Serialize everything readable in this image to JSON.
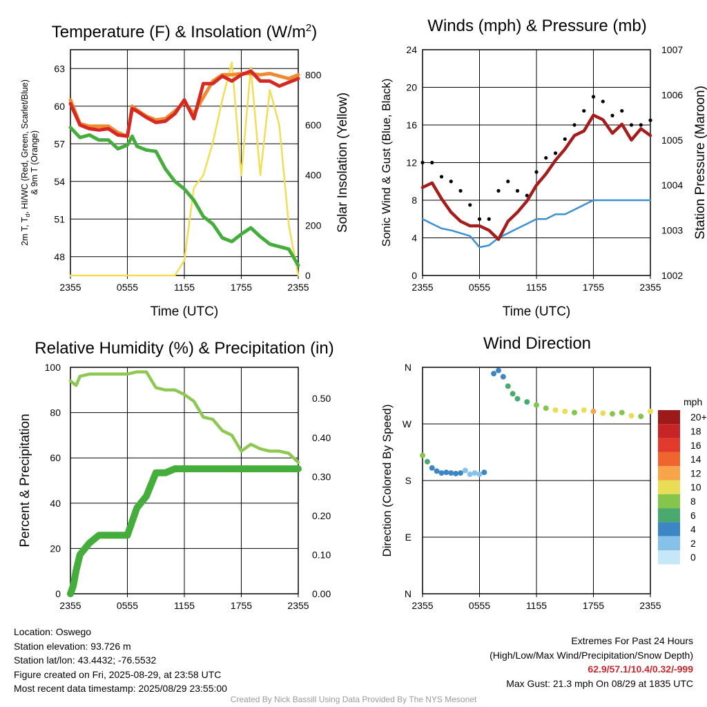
{
  "colors": {
    "temp_red": "#d42a23",
    "temp_orange": "#ef8a33",
    "dewpoint_green": "#44ad3c",
    "insolation_yellow": "#f3dd55",
    "wind_blue": "#3c8fd0",
    "gust_black": "#000000",
    "pressure_maroon": "#a41c1c",
    "rh_lightgreen": "#8dc852",
    "precip_green": "#44ad3c"
  },
  "chart_data": [
    {
      "id": "temperature",
      "type": "line",
      "title": "Temperature (F) & Insolation (W/m²)",
      "xlabel": "Time (UTC)",
      "ylabel": "2m T, Td, HI/WC (Red, Green, Scarlet/Blue) & 9m T (Orange)",
      "ylabel_line1": "2m T, T",
      "ylabel_sub": "d",
      "ylabel_line1_rest": ", HI/WC (Red, Green, Scarlet/Blue)",
      "ylabel_line2": "& 9m T (Orange)",
      "y2label": "Solar Insolation (Yellow)",
      "x_ticks": [
        "2355",
        "0555",
        "1155",
        "1755",
        "2355"
      ],
      "ylim": [
        46.5,
        64.5
      ],
      "y_ticks": [
        48,
        51,
        54,
        57,
        60,
        63
      ],
      "y2lim": [
        0,
        900
      ],
      "y2_ticks": [
        0,
        200,
        400,
        600,
        800
      ],
      "x": [
        0,
        1,
        2,
        3,
        4,
        5,
        6,
        6.5,
        7,
        8,
        9,
        10,
        11,
        12,
        13,
        14,
        15,
        16,
        17,
        18,
        19,
        20,
        21,
        22,
        23,
        24
      ],
      "series": [
        {
          "name": "9m T",
          "axis": "y",
          "values": [
            60.5,
            58.6,
            58.4,
            58.4,
            58.4,
            57.9,
            57.6,
            60.0,
            59.7,
            59.2,
            58.9,
            59.0,
            59.6,
            60.3,
            59.4,
            60.7,
            62.0,
            62.5,
            62.5,
            62.6,
            62.6,
            62.5,
            62.6,
            62.4,
            62.2,
            62.5
          ]
        },
        {
          "name": "2m T",
          "axis": "y",
          "values": [
            60.2,
            58.5,
            58.2,
            58.1,
            58.2,
            57.7,
            57.6,
            59.8,
            59.6,
            59.1,
            58.7,
            58.8,
            59.4,
            60.5,
            59.0,
            61.8,
            61.8,
            62.4,
            62.0,
            62.5,
            62.8,
            62.0,
            62.0,
            61.6,
            61.9,
            62.2
          ]
        },
        {
          "name": "Td",
          "axis": "y",
          "values": [
            58.3,
            57.5,
            57.7,
            57.3,
            57.3,
            56.6,
            56.9,
            57.6,
            56.8,
            56.5,
            56.4,
            55.0,
            54.0,
            53.4,
            52.5,
            51.2,
            50.6,
            49.5,
            49.2,
            49.8,
            50.3,
            49.6,
            49.0,
            48.8,
            48.6,
            47.3
          ]
        },
        {
          "name": "Solar Insolation",
          "axis": "y2",
          "values": [
            0,
            0,
            0,
            0,
            0,
            0,
            0,
            0,
            0,
            0,
            0,
            0,
            0,
            60,
            350,
            400,
            530,
            700,
            850,
            400,
            830,
            400,
            740,
            600,
            200,
            0
          ]
        }
      ]
    },
    {
      "id": "winds",
      "type": "line",
      "title": "Winds (mph) & Pressure (mb)",
      "xlabel": "Time (UTC)",
      "ylabel": "Sonic Wind & Gust (Blue, Black)",
      "y2label": "Station Pressure (Maroon)",
      "x_ticks": [
        "2355",
        "0555",
        "1155",
        "1755",
        "2355"
      ],
      "ylim": [
        0,
        24
      ],
      "y_ticks": [
        0,
        4,
        8,
        12,
        16,
        20,
        24
      ],
      "y2lim": [
        1002,
        1007
      ],
      "y2_ticks": [
        1002,
        1003,
        1004,
        1005,
        1006,
        1007
      ],
      "x": [
        0,
        1,
        2,
        3,
        4,
        5,
        6,
        7,
        8,
        9,
        10,
        11,
        12,
        13,
        14,
        15,
        16,
        17,
        18,
        19,
        20,
        21,
        22,
        23,
        24
      ],
      "series": [
        {
          "name": "Sonic Wind",
          "axis": "y",
          "values": [
            6.0,
            5.5,
            5.0,
            4.8,
            4.5,
            4.2,
            3.0,
            3.2,
            4.0,
            4.5,
            5.0,
            5.5,
            6.0,
            6.0,
            6.5,
            6.5,
            7.0,
            7.5,
            8.0,
            8.0,
            8.0,
            8.0,
            8.0,
            8.0,
            8.0
          ]
        },
        {
          "name": "Gust",
          "axis": "y",
          "values": [
            12.0,
            12.0,
            10.5,
            10.0,
            9.0,
            7.5,
            6.0,
            6.0,
            9.0,
            10.0,
            9.0,
            8.5,
            11.0,
            12.5,
            13.0,
            14.5,
            16.0,
            17.5,
            19.0,
            18.5,
            17.0,
            17.5,
            16.0,
            16.0,
            16.5
          ]
        },
        {
          "name": "Station Pressure",
          "axis": "y2",
          "values": [
            1003.95,
            1004.05,
            1003.7,
            1003.4,
            1003.2,
            1003.1,
            1003.1,
            1003.0,
            1002.8,
            1003.2,
            1003.4,
            1003.65,
            1004.0,
            1004.25,
            1004.55,
            1004.8,
            1005.1,
            1005.2,
            1005.55,
            1005.45,
            1005.15,
            1005.35,
            1005.0,
            1005.25,
            1005.1
          ]
        }
      ]
    },
    {
      "id": "humidity",
      "type": "line",
      "title": "Relative Humidity (%) & Precipitation (in)",
      "xlabel": "",
      "ylabel": "Percent & Precipitation",
      "x_ticks": [
        "2355",
        "0555",
        "1155",
        "1755",
        "2355"
      ],
      "ylim": [
        0,
        100
      ],
      "y_ticks": [
        0,
        20,
        40,
        60,
        80,
        100
      ],
      "y2lim": [
        0,
        0.58
      ],
      "y2_ticks": [
        "0.00",
        "0.10",
        "0.20",
        "0.30",
        "0.40",
        "0.50"
      ],
      "x": [
        0,
        0.3,
        0.6,
        1,
        2,
        3,
        4,
        5,
        6,
        7,
        8,
        9,
        10,
        11,
        12,
        13,
        14,
        15,
        16,
        17,
        18,
        19,
        20,
        21,
        22,
        23,
        24
      ],
      "series": [
        {
          "name": "Relative Humidity",
          "axis": "y",
          "values": [
            94,
            93,
            92,
            96,
            97,
            97,
            97,
            97,
            97,
            98,
            98,
            91,
            90,
            90,
            88,
            85,
            78,
            77,
            72,
            70,
            63,
            66,
            64,
            63,
            63,
            62,
            58
          ]
        },
        {
          "name": "Precipitation",
          "axis": "y2",
          "values": [
            0,
            0.02,
            0.06,
            0.1,
            0.13,
            0.15,
            0.15,
            0.15,
            0.15,
            0.22,
            0.25,
            0.31,
            0.31,
            0.32,
            0.32,
            0.32,
            0.32,
            0.32,
            0.32,
            0.32,
            0.32,
            0.32,
            0.32,
            0.32,
            0.32,
            0.32,
            0.32
          ]
        }
      ]
    },
    {
      "id": "direction",
      "type": "scatter",
      "title": "Wind Direction",
      "xlabel": "",
      "ylabel": "Direction (Colored By Speed)",
      "x_ticks": [
        "2355",
        "0555",
        "1155",
        "1755",
        "2355"
      ],
      "ylim": [
        0,
        360
      ],
      "y_ticks": [
        "N",
        "E",
        "S",
        "W",
        "N"
      ],
      "legend_title": "mph",
      "legend_labels": [
        "20+",
        "18",
        "16",
        "14",
        "12",
        "10",
        "8",
        "6",
        "4",
        "2",
        "0"
      ],
      "legend_colors": [
        "#9c1a1a",
        "#c72427",
        "#e23a2c",
        "#f0652d",
        "#f8a44a",
        "#eadd56",
        "#86c54c",
        "#4aa96c",
        "#3d86c6",
        "#85c1e9",
        "#c6e7f7"
      ],
      "x": [
        0,
        0.5,
        1,
        1.5,
        2,
        2.5,
        3,
        3.5,
        4,
        4.5,
        5,
        5.5,
        6,
        6.5,
        7.5,
        8,
        8.5,
        9,
        9.5,
        10,
        11,
        12,
        13,
        14,
        15,
        16,
        17,
        18,
        19,
        20,
        21,
        22,
        23,
        24
      ],
      "values": [
        220,
        210,
        200,
        195,
        192,
        193,
        192,
        191,
        192,
        196,
        190,
        192,
        190,
        193,
        350,
        355,
        345,
        330,
        318,
        310,
        305,
        300,
        295,
        292,
        290,
        288,
        292,
        290,
        287,
        286,
        288,
        283,
        282,
        290
      ],
      "speeds": [
        7,
        5,
        4,
        4,
        4,
        4,
        4,
        4,
        3,
        2,
        2,
        2,
        2,
        3,
        4,
        3,
        4,
        5,
        6,
        5,
        6,
        7,
        8,
        9,
        9,
        8,
        10,
        11,
        9,
        8,
        8,
        9,
        8,
        9
      ]
    }
  ],
  "footer": {
    "location": "Location: Oswego",
    "elevation": "Station elevation: 93.726 m",
    "latlon": "Station lat/lon: 43.4432; -76.5532",
    "created": "Figure created on Fri, 2025-08-29, at 23:58 UTC",
    "recent": "Most recent data timestamp: 2025/08/29 23:55:00",
    "extremes_title": "Extremes For Past 24 Hours",
    "extremes_legend": "(High/Low/Max Wind/Precipitation/Snow Depth)",
    "extremes_values": "62.9/57.1/10.4/0.32/-999",
    "max_gust": "Max Gust: 21.3 mph On 08/29 at 1835 UTC"
  },
  "credit": "Created By Nick Bassill Using Data Provided By The NYS Mesonet"
}
